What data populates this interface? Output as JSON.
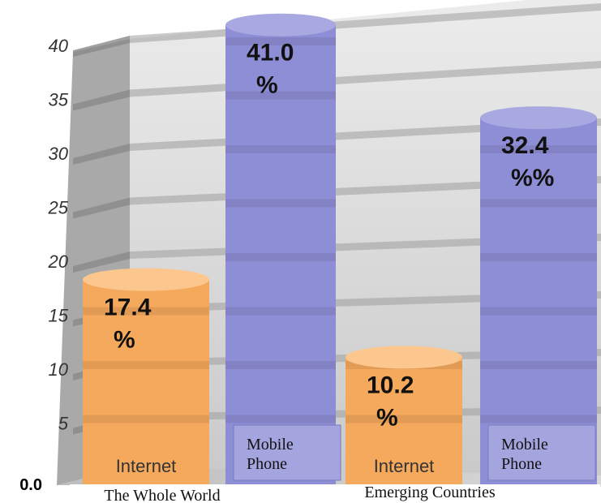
{
  "chart_data": {
    "type": "bar",
    "title": "",
    "xlabel": "",
    "ylabel": "",
    "ylim": [
      0,
      40
    ],
    "y_ticks": [
      "0.0",
      "5",
      "10",
      "15",
      "20",
      "25",
      "30",
      "35",
      "40"
    ],
    "categories": [
      "The Whole World",
      "Emerging Countries"
    ],
    "series": [
      {
        "name": "Internet",
        "color": "#f7ad62",
        "values": [
          17.4,
          10.2
        ],
        "data_labels": [
          [
            "17.4",
            "%"
          ],
          [
            "10.2",
            "%"
          ]
        ],
        "bar_labels": [
          [
            "Internet"
          ],
          [
            "Internet"
          ]
        ]
      },
      {
        "name": "Mobile Phone",
        "color": "#9494d8",
        "values": [
          41.0,
          32.4
        ],
        "data_labels": [
          [
            "41.0",
            "%"
          ],
          [
            "32.4",
            "%%"
          ]
        ],
        "bar_labels": [
          [
            "Mobile",
            "Phone"
          ],
          [
            "Mobile",
            "Phone"
          ]
        ]
      }
    ],
    "style": "3d-cylinder",
    "grid": true,
    "legend": "none"
  }
}
